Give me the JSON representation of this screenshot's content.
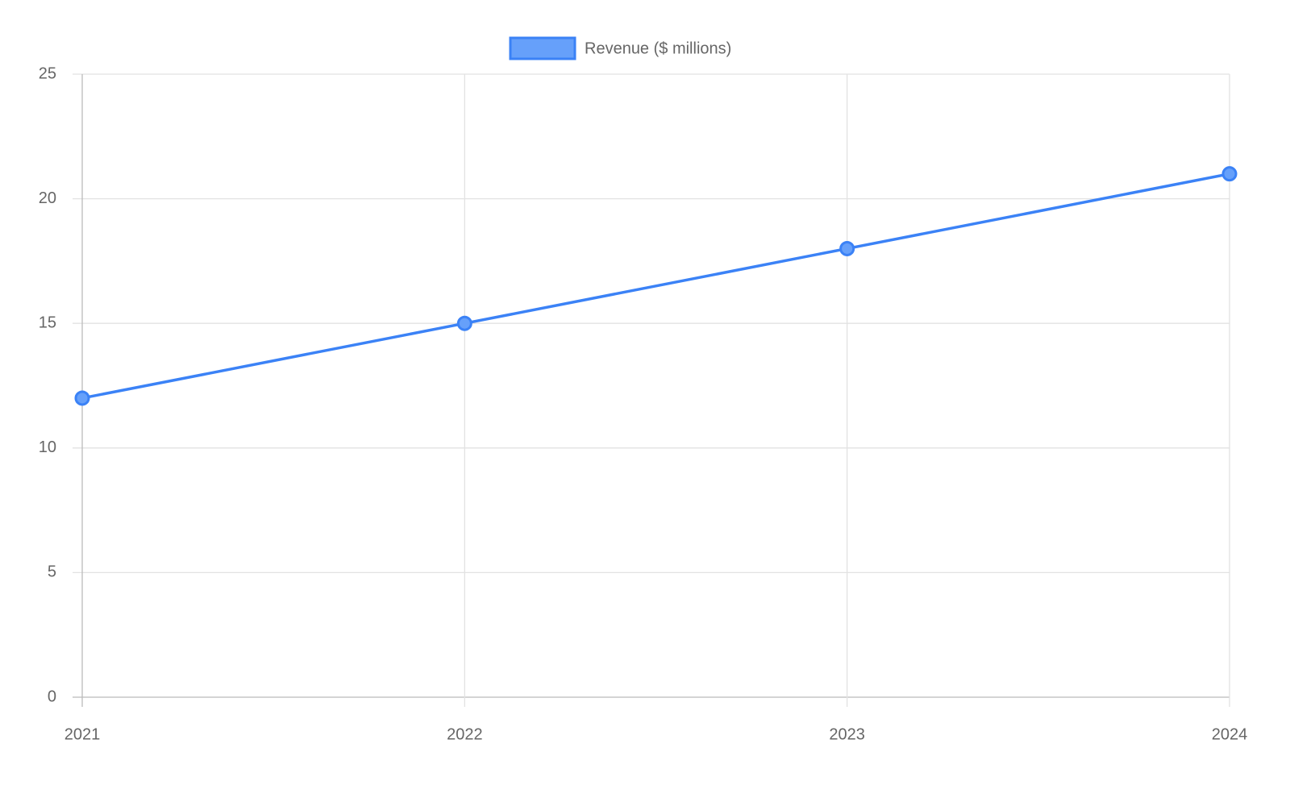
{
  "chart_data": {
    "type": "line",
    "categories": [
      "2021",
      "2022",
      "2023",
      "2024"
    ],
    "series": [
      {
        "name": "Revenue ($ millions)",
        "color": "#3b82f6",
        "fill": "#66a0fa",
        "values": [
          12,
          15,
          18,
          21
        ]
      }
    ],
    "ylim": [
      0,
      25
    ],
    "yticks": [
      0,
      5,
      10,
      15,
      20,
      25
    ],
    "grid": true,
    "legend": "top"
  }
}
